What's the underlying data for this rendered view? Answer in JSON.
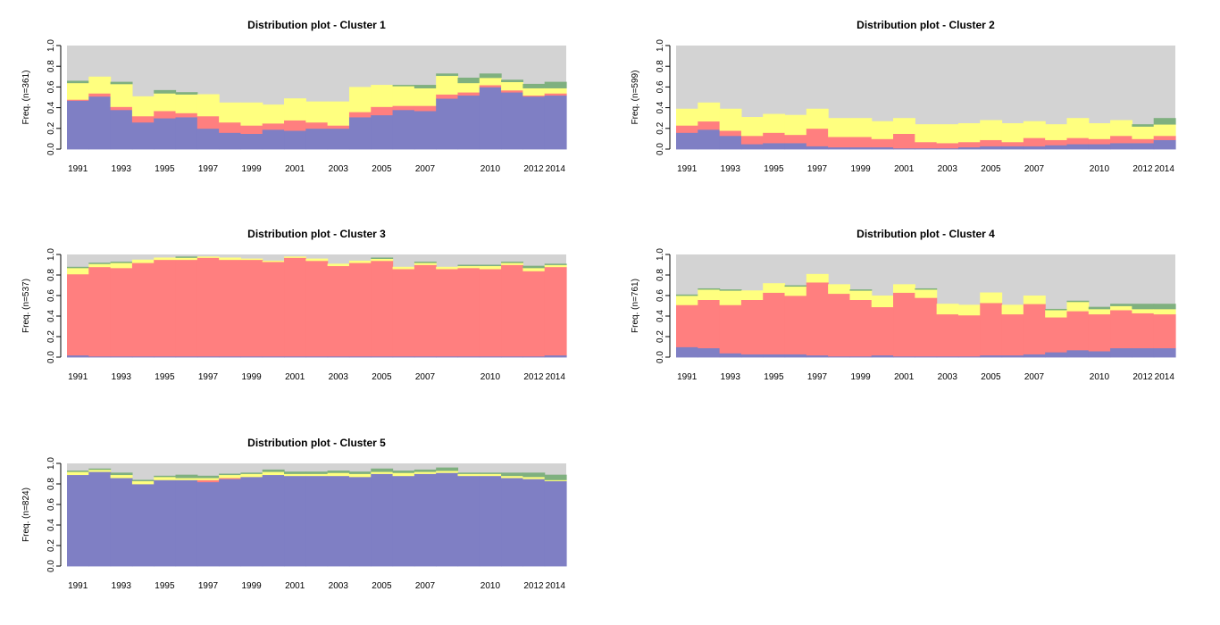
{
  "colors": {
    "s1": "#7f7fc4",
    "s2": "#ff7f7f",
    "s3": "#ffff7f",
    "s4": "#7fb07f",
    "missing": "#d3d3d3",
    "axis": "#000000"
  },
  "chart_data": [
    {
      "type": "area",
      "title": "Distribution plot - Cluster 1",
      "ylabel": "Freq. (n=361)",
      "ylim": [
        0,
        1
      ],
      "yticks": [
        "0.0",
        "0.2",
        "0.4",
        "0.6",
        "0.8",
        "1.0"
      ],
      "xtick_labels": [
        "1991",
        "1993",
        "1995",
        "1997",
        "1999",
        "2001",
        "2003",
        "2005",
        "2007",
        "2010",
        "2012",
        "2014"
      ],
      "series": [
        {
          "values": [
            0.47,
            0.51,
            0.38,
            0.26,
            0.3,
            0.31,
            0.2,
            0.16,
            0.15,
            0.19,
            0.18,
            0.2,
            0.2,
            0.31,
            0.33,
            0.38,
            0.37,
            0.49,
            0.52,
            0.6,
            0.55,
            0.51,
            0.52
          ]
        },
        {
          "values": [
            0.01,
            0.03,
            0.03,
            0.06,
            0.07,
            0.04,
            0.12,
            0.1,
            0.08,
            0.06,
            0.1,
            0.06,
            0.03,
            0.05,
            0.08,
            0.04,
            0.05,
            0.04,
            0.03,
            0.02,
            0.02,
            0.01,
            0.02
          ]
        },
        {
          "values": [
            0.16,
            0.16,
            0.22,
            0.19,
            0.17,
            0.18,
            0.21,
            0.19,
            0.22,
            0.18,
            0.21,
            0.2,
            0.23,
            0.24,
            0.21,
            0.19,
            0.17,
            0.18,
            0.09,
            0.07,
            0.08,
            0.07,
            0.05
          ]
        },
        {
          "values": [
            0.02,
            0.0,
            0.02,
            0.0,
            0.03,
            0.02,
            0.0,
            0.0,
            0.0,
            0.0,
            0.0,
            0.0,
            0.0,
            0.0,
            0.0,
            0.01,
            0.03,
            0.02,
            0.05,
            0.04,
            0.02,
            0.04,
            0.06
          ]
        }
      ]
    },
    {
      "type": "area",
      "title": "Distribution plot - Cluster 2",
      "ylabel": "Freq. (n=599)",
      "ylim": [
        0,
        1
      ],
      "yticks": [
        "0.0",
        "0.2",
        "0.4",
        "0.6",
        "0.8",
        "1.0"
      ],
      "xtick_labels": [
        "1991",
        "1993",
        "1995",
        "1997",
        "1999",
        "2001",
        "2003",
        "2005",
        "2007",
        "2010",
        "2012",
        "2014"
      ],
      "series": [
        {
          "values": [
            0.16,
            0.19,
            0.13,
            0.05,
            0.06,
            0.06,
            0.03,
            0.02,
            0.02,
            0.02,
            0.01,
            0.01,
            0.01,
            0.02,
            0.03,
            0.03,
            0.03,
            0.04,
            0.05,
            0.05,
            0.06,
            0.06,
            0.09
          ]
        },
        {
          "values": [
            0.07,
            0.08,
            0.05,
            0.08,
            0.1,
            0.08,
            0.17,
            0.1,
            0.1,
            0.08,
            0.14,
            0.06,
            0.05,
            0.05,
            0.06,
            0.04,
            0.08,
            0.05,
            0.06,
            0.05,
            0.07,
            0.04,
            0.04
          ]
        },
        {
          "values": [
            0.16,
            0.18,
            0.21,
            0.18,
            0.18,
            0.19,
            0.19,
            0.18,
            0.18,
            0.17,
            0.15,
            0.17,
            0.18,
            0.18,
            0.19,
            0.18,
            0.16,
            0.15,
            0.19,
            0.15,
            0.15,
            0.12,
            0.11
          ]
        },
        {
          "values": [
            0.0,
            0.0,
            0.0,
            0.0,
            0.0,
            0.0,
            0.0,
            0.0,
            0.0,
            0.0,
            0.0,
            0.0,
            0.0,
            0.0,
            0.0,
            0.0,
            0.0,
            0.0,
            0.0,
            0.0,
            0.0,
            0.02,
            0.06
          ]
        }
      ]
    },
    {
      "type": "area",
      "title": "Distribution plot - Cluster 3",
      "ylabel": "Freq. (n=537)",
      "ylim": [
        0,
        1
      ],
      "yticks": [
        "0.0",
        "0.2",
        "0.4",
        "0.6",
        "0.8",
        "1.0"
      ],
      "xtick_labels": [
        "1991",
        "1993",
        "1995",
        "1997",
        "1999",
        "2001",
        "2003",
        "2005",
        "2007",
        "2010",
        "2012",
        "2014"
      ],
      "series": [
        {
          "values": [
            0.02,
            0.01,
            0.01,
            0.01,
            0.01,
            0.01,
            0.01,
            0.01,
            0.01,
            0.01,
            0.01,
            0.01,
            0.01,
            0.01,
            0.01,
            0.01,
            0.01,
            0.01,
            0.01,
            0.01,
            0.01,
            0.01,
            0.02
          ]
        },
        {
          "values": [
            0.79,
            0.87,
            0.86,
            0.91,
            0.94,
            0.94,
            0.96,
            0.94,
            0.94,
            0.92,
            0.96,
            0.93,
            0.88,
            0.91,
            0.93,
            0.85,
            0.89,
            0.85,
            0.86,
            0.85,
            0.89,
            0.83,
            0.86
          ]
        },
        {
          "values": [
            0.06,
            0.03,
            0.05,
            0.03,
            0.02,
            0.02,
            0.01,
            0.02,
            0.01,
            0.01,
            0.01,
            0.02,
            0.02,
            0.02,
            0.02,
            0.02,
            0.02,
            0.02,
            0.02,
            0.03,
            0.02,
            0.03,
            0.02
          ]
        },
        {
          "values": [
            0.01,
            0.01,
            0.01,
            0.0,
            0.0,
            0.01,
            0.0,
            0.0,
            0.0,
            0.0,
            0.0,
            0.0,
            0.0,
            0.0,
            0.01,
            0.0,
            0.01,
            0.0,
            0.01,
            0.01,
            0.01,
            0.02,
            0.01
          ]
        }
      ]
    },
    {
      "type": "area",
      "title": "Distribution plot - Cluster 4",
      "ylabel": "Freq. (n=761)",
      "ylim": [
        0,
        1
      ],
      "yticks": [
        "0.0",
        "0.2",
        "0.4",
        "0.6",
        "0.8",
        "1.0"
      ],
      "xtick_labels": [
        "1991",
        "1993",
        "1995",
        "1997",
        "1999",
        "2001",
        "2003",
        "2005",
        "2007",
        "2010",
        "2012",
        "2014"
      ],
      "series": [
        {
          "values": [
            0.1,
            0.09,
            0.04,
            0.03,
            0.03,
            0.03,
            0.02,
            0.01,
            0.01,
            0.02,
            0.01,
            0.01,
            0.01,
            0.01,
            0.02,
            0.02,
            0.03,
            0.05,
            0.07,
            0.06,
            0.09,
            0.09,
            0.09
          ]
        },
        {
          "values": [
            0.41,
            0.47,
            0.47,
            0.53,
            0.6,
            0.57,
            0.71,
            0.61,
            0.55,
            0.47,
            0.62,
            0.57,
            0.41,
            0.4,
            0.51,
            0.4,
            0.49,
            0.34,
            0.38,
            0.36,
            0.37,
            0.34,
            0.33
          ]
        },
        {
          "values": [
            0.09,
            0.1,
            0.14,
            0.09,
            0.09,
            0.09,
            0.08,
            0.09,
            0.09,
            0.11,
            0.08,
            0.08,
            0.1,
            0.1,
            0.1,
            0.09,
            0.08,
            0.07,
            0.09,
            0.05,
            0.04,
            0.04,
            0.05
          ]
        },
        {
          "values": [
            0.01,
            0.01,
            0.01,
            0.0,
            0.0,
            0.01,
            0.0,
            0.0,
            0.01,
            0.0,
            0.0,
            0.01,
            0.0,
            0.0,
            0.0,
            0.0,
            0.0,
            0.01,
            0.01,
            0.02,
            0.02,
            0.05,
            0.05
          ]
        }
      ]
    },
    {
      "type": "area",
      "title": "Distribution plot - Cluster 5",
      "ylabel": "Freq. (n=824)",
      "ylim": [
        0,
        1
      ],
      "yticks": [
        "0.0",
        "0.2",
        "0.4",
        "0.6",
        "0.8",
        "1.0"
      ],
      "xtick_labels": [
        "1991",
        "1993",
        "1995",
        "1997",
        "1999",
        "2001",
        "2003",
        "2005",
        "2007",
        "2010",
        "2012",
        "2014"
      ],
      "series": [
        {
          "values": [
            0.89,
            0.92,
            0.86,
            0.8,
            0.84,
            0.84,
            0.82,
            0.85,
            0.87,
            0.89,
            0.88,
            0.88,
            0.88,
            0.87,
            0.9,
            0.88,
            0.9,
            0.91,
            0.88,
            0.88,
            0.86,
            0.85,
            0.83
          ]
        },
        {
          "values": [
            0.0,
            0.0,
            0.0,
            0.0,
            0.0,
            0.0,
            0.02,
            0.01,
            0.0,
            0.0,
            0.0,
            0.0,
            0.0,
            0.0,
            0.0,
            0.0,
            0.0,
            0.0,
            0.0,
            0.0,
            0.0,
            0.0,
            0.0
          ]
        },
        {
          "values": [
            0.03,
            0.02,
            0.03,
            0.03,
            0.03,
            0.02,
            0.02,
            0.03,
            0.03,
            0.03,
            0.02,
            0.02,
            0.03,
            0.03,
            0.02,
            0.03,
            0.02,
            0.02,
            0.02,
            0.02,
            0.02,
            0.02,
            0.01
          ]
        },
        {
          "values": [
            0.01,
            0.01,
            0.02,
            0.01,
            0.01,
            0.03,
            0.02,
            0.01,
            0.01,
            0.02,
            0.02,
            0.02,
            0.02,
            0.02,
            0.03,
            0.02,
            0.02,
            0.03,
            0.01,
            0.01,
            0.03,
            0.04,
            0.05
          ]
        }
      ]
    }
  ]
}
